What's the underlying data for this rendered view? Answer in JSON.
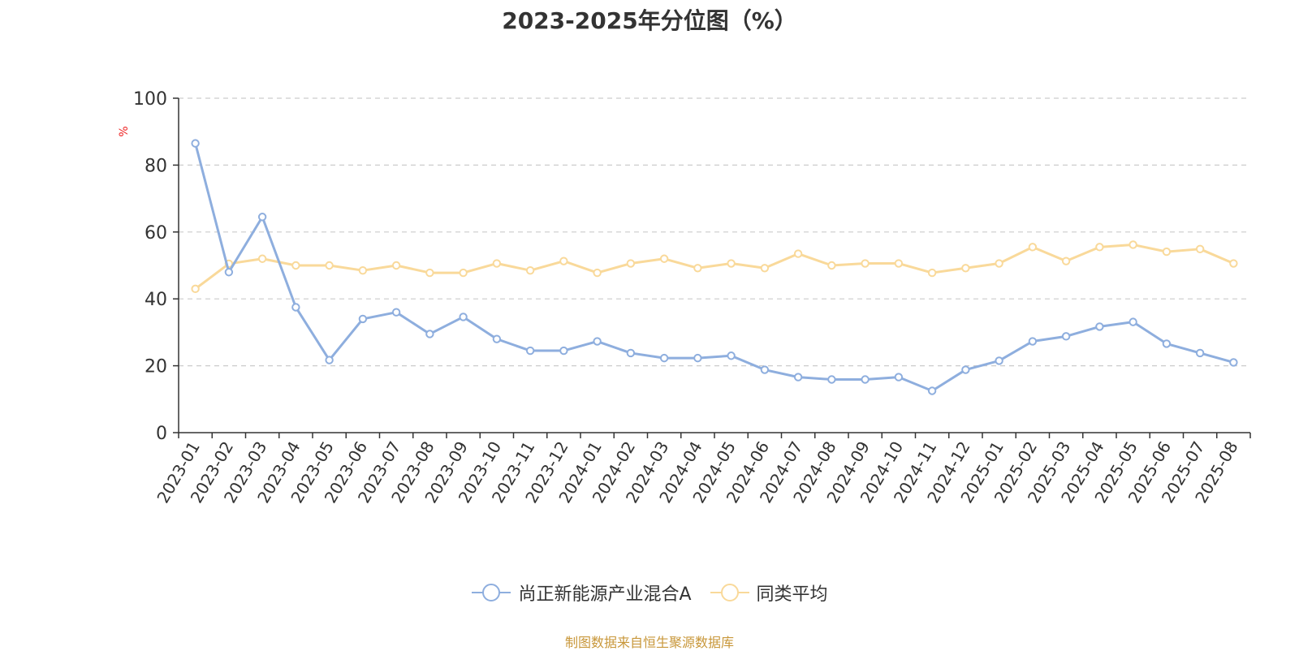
{
  "chart_data": {
    "type": "line",
    "title": "2023-2025年分位图（%）",
    "ylabel": "%",
    "xlabel": "",
    "ylim": [
      0,
      100
    ],
    "yticks": [
      0,
      20,
      40,
      60,
      80,
      100
    ],
    "grid": true,
    "legend_position": "bottom",
    "categories": [
      "2023-01",
      "2023-02",
      "2023-03",
      "2023-04",
      "2023-05",
      "2023-06",
      "2023-07",
      "2023-08",
      "2023-09",
      "2023-10",
      "2023-11",
      "2023-12",
      "2024-01",
      "2024-02",
      "2024-03",
      "2024-04",
      "2024-05",
      "2024-06",
      "2024-07",
      "2024-08",
      "2024-09",
      "2024-10",
      "2024-11",
      "2024-12",
      "2025-01",
      "2025-02",
      "2025-03",
      "2025-04",
      "2025-05",
      "2025-06",
      "2025-07",
      "2025-08"
    ],
    "series": [
      {
        "name": "尚正新能源产业混合A",
        "color": "#8eaede",
        "values": [
          86.5,
          48,
          64.5,
          37.5,
          21.7,
          34,
          36,
          29.5,
          34.6,
          28,
          24.5,
          24.5,
          27.3,
          23.8,
          22.3,
          22.3,
          23,
          18.8,
          16.6,
          15.9,
          15.9,
          16.6,
          12.5,
          18.8,
          21.5,
          27.3,
          28.8,
          31.7,
          33.1,
          26.6,
          23.8,
          21
        ]
      },
      {
        "name": "同类平均",
        "color": "#f9d99a",
        "values": [
          43,
          50.5,
          52,
          50,
          50,
          48.5,
          50,
          47.8,
          47.8,
          50.6,
          48.5,
          51.3,
          47.8,
          50.6,
          52,
          49.2,
          50.6,
          49.2,
          53.5,
          50,
          50.6,
          50.6,
          47.8,
          49.2,
          50.6,
          55.5,
          51.3,
          55.5,
          56.2,
          54.1,
          54.9,
          50.6
        ]
      }
    ]
  },
  "source_note": "制图数据来自恒生聚源数据库"
}
